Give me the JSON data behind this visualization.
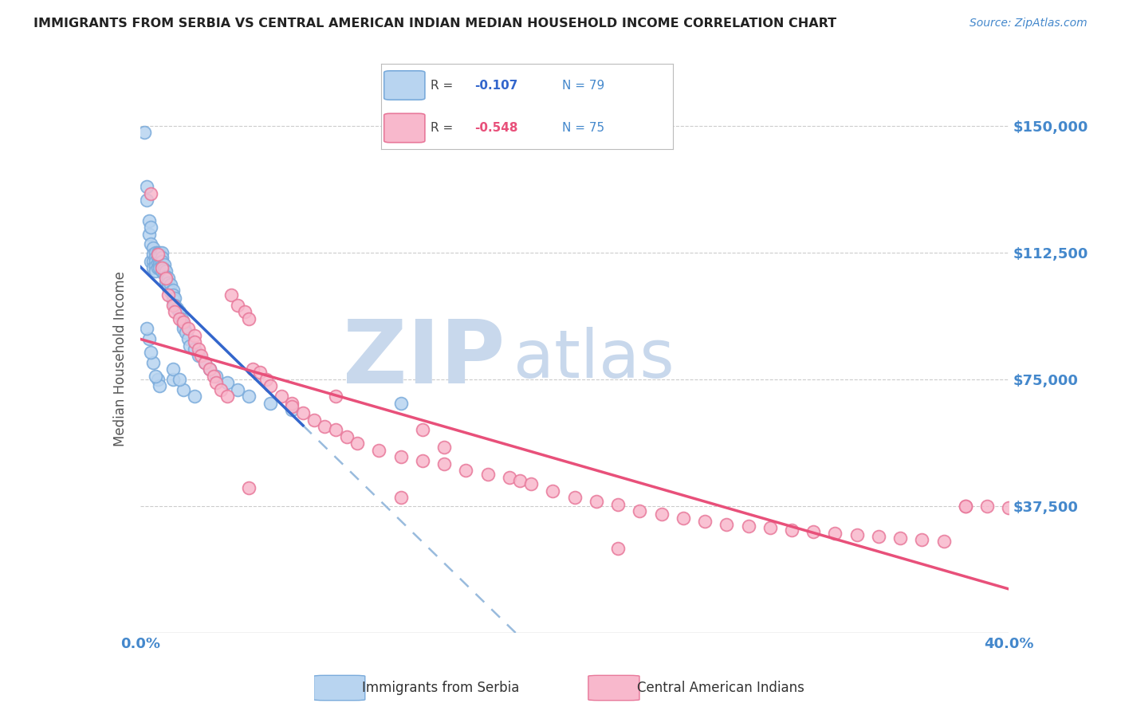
{
  "title": "IMMIGRANTS FROM SERBIA VS CENTRAL AMERICAN INDIAN MEDIAN HOUSEHOLD INCOME CORRELATION CHART",
  "source": "Source: ZipAtlas.com",
  "ylabel": "Median Household Income",
  "y_ticks": [
    0,
    37500,
    75000,
    112500,
    150000
  ],
  "y_tick_labels": [
    "",
    "$37,500",
    "$75,000",
    "$112,500",
    "$150,000"
  ],
  "xlim": [
    0.0,
    0.4
  ],
  "ylim": [
    0,
    162000
  ],
  "series1_label": "Immigrants from Serbia",
  "series1_R": "-0.107",
  "series1_N": "79",
  "series1_color": "#b8d4f0",
  "series1_edge_color": "#7aabdb",
  "series2_label": "Central American Indians",
  "series2_R": "-0.548",
  "series2_N": "75",
  "series2_color": "#f8b8cc",
  "series2_edge_color": "#e8789a",
  "line1_color": "#3366cc",
  "line2_color": "#e8507a",
  "dashed_line_color": "#99bbdd",
  "title_color": "#333333",
  "axis_label_color": "#4488cc",
  "background_color": "#ffffff",
  "watermark": "ZIPatlas",
  "watermark_color": "#c8d8ec",
  "grid_color": "#cccccc",
  "series1_x": [
    0.002,
    0.003,
    0.003,
    0.004,
    0.004,
    0.005,
    0.005,
    0.005,
    0.006,
    0.006,
    0.006,
    0.006,
    0.007,
    0.007,
    0.007,
    0.007,
    0.007,
    0.008,
    0.008,
    0.008,
    0.008,
    0.009,
    0.009,
    0.009,
    0.009,
    0.009,
    0.009,
    0.01,
    0.01,
    0.01,
    0.01,
    0.01,
    0.011,
    0.011,
    0.011,
    0.012,
    0.012,
    0.012,
    0.013,
    0.013,
    0.013,
    0.014,
    0.014,
    0.015,
    0.015,
    0.015,
    0.016,
    0.016,
    0.017,
    0.018,
    0.019,
    0.02,
    0.02,
    0.021,
    0.022,
    0.023,
    0.025,
    0.027,
    0.03,
    0.032,
    0.035,
    0.04,
    0.045,
    0.05,
    0.06,
    0.07,
    0.015,
    0.02,
    0.025,
    0.015,
    0.018,
    0.008,
    0.009,
    0.007,
    0.006,
    0.005,
    0.004,
    0.003,
    0.12
  ],
  "series1_y": [
    148000,
    132000,
    128000,
    122000,
    118000,
    120000,
    115000,
    110000,
    114000,
    112000,
    110000,
    108000,
    112500,
    111000,
    110000,
    108500,
    107000,
    112500,
    111000,
    109500,
    108000,
    112500,
    112000,
    111500,
    110000,
    109000,
    108000,
    112500,
    111000,
    110000,
    108500,
    107000,
    109000,
    107500,
    106000,
    107000,
    105500,
    104000,
    105000,
    103500,
    102000,
    103000,
    101000,
    101500,
    100000,
    98500,
    99000,
    97000,
    96000,
    95000,
    93000,
    91000,
    90000,
    89000,
    87000,
    85000,
    84000,
    82000,
    80000,
    78000,
    76000,
    74000,
    72000,
    70000,
    68000,
    66000,
    75000,
    72000,
    70000,
    78000,
    75000,
    75000,
    73000,
    76000,
    80000,
    83000,
    87000,
    90000,
    68000
  ],
  "series2_x": [
    0.005,
    0.008,
    0.01,
    0.012,
    0.013,
    0.015,
    0.016,
    0.018,
    0.02,
    0.022,
    0.025,
    0.025,
    0.027,
    0.028,
    0.03,
    0.032,
    0.034,
    0.035,
    0.037,
    0.04,
    0.042,
    0.045,
    0.048,
    0.05,
    0.052,
    0.055,
    0.058,
    0.06,
    0.065,
    0.07,
    0.07,
    0.075,
    0.08,
    0.085,
    0.09,
    0.095,
    0.1,
    0.11,
    0.12,
    0.13,
    0.14,
    0.14,
    0.15,
    0.16,
    0.17,
    0.175,
    0.18,
    0.19,
    0.2,
    0.21,
    0.22,
    0.23,
    0.24,
    0.25,
    0.26,
    0.27,
    0.28,
    0.29,
    0.3,
    0.31,
    0.32,
    0.33,
    0.34,
    0.35,
    0.36,
    0.37,
    0.38,
    0.39,
    0.4,
    0.05,
    0.12,
    0.22,
    0.13,
    0.09,
    0.38
  ],
  "series2_y": [
    130000,
    112000,
    108000,
    105000,
    100000,
    97000,
    95000,
    93000,
    92000,
    90000,
    88000,
    86000,
    84000,
    82000,
    80000,
    78000,
    76000,
    74000,
    72000,
    70000,
    100000,
    97000,
    95000,
    93000,
    78000,
    77000,
    75000,
    73000,
    70000,
    68000,
    67000,
    65000,
    63000,
    61000,
    60000,
    58000,
    56000,
    54000,
    52000,
    51000,
    50000,
    55000,
    48000,
    47000,
    46000,
    45000,
    44000,
    42000,
    40000,
    39000,
    38000,
    36000,
    35000,
    34000,
    33000,
    32000,
    31500,
    31000,
    30500,
    30000,
    29500,
    29000,
    28500,
    28000,
    27500,
    27000,
    37500,
    37500,
    37000,
    43000,
    40000,
    25000,
    60000,
    70000,
    37500
  ]
}
